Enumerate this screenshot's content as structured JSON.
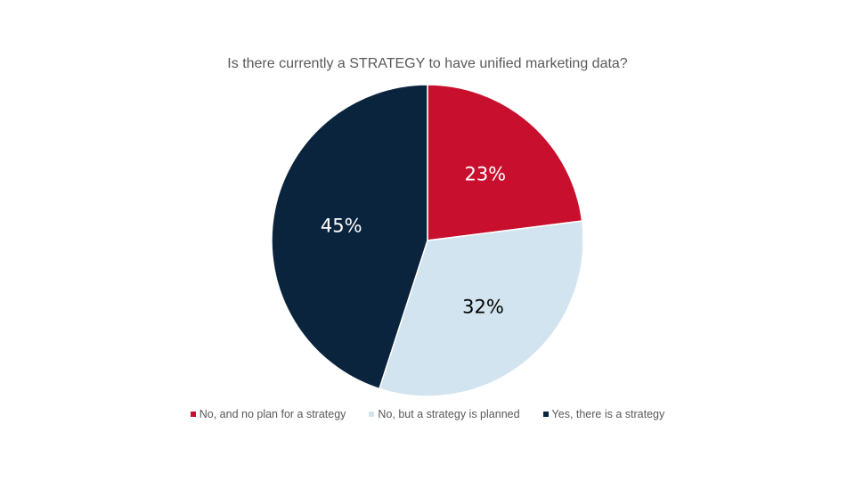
{
  "chart_data": {
    "type": "pie",
    "title": "Is there currently a STRATEGY to have unified marketing data?",
    "categories": [
      "No, and no plan for a strategy",
      "No, but a strategy is planned",
      "Yes, there is a strategy"
    ],
    "values": [
      23,
      32,
      45
    ],
    "value_labels": [
      "23%",
      "32%",
      "45%"
    ],
    "colors": [
      "#c8102e",
      "#d2e4ef",
      "#0b243d"
    ],
    "label_colors": [
      "#ffffff",
      "#000000",
      "#ffffff"
    ],
    "legend": "bottom"
  }
}
